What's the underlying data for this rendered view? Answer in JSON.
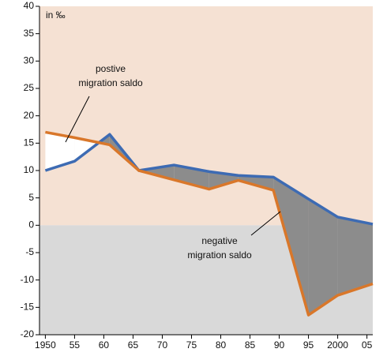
{
  "chart_data": {
    "type": "line",
    "unit_label": "in ‰",
    "x": [
      1950,
      1955,
      1961,
      1966,
      1972,
      1978,
      1983,
      1989,
      1995,
      2000,
      2006
    ],
    "series": [
      {
        "color": "#3d6bb3",
        "values": [
          10,
          11.7,
          16.6,
          10,
          11,
          9.8,
          9.1,
          8.8,
          4.8,
          1.5,
          0.2
        ]
      },
      {
        "color": "#d9772a",
        "values": [
          17,
          16,
          14.7,
          10,
          8.3,
          6.6,
          8.2,
          6.4,
          -16.4,
          -12.8,
          -10.7
        ]
      }
    ],
    "fill_between": {
      "below_first_color": "#8c8c8c",
      "above_first_color": "#ffffff"
    },
    "positive_background": "#f5e1d3",
    "negative_background": "#d9d9d9",
    "annotations": [
      {
        "lines": [
          "postive",
          "migration saldo"
        ]
      },
      {
        "lines": [
          "negative",
          "migration saldo"
        ]
      }
    ],
    "xlim": [
      1949,
      2006
    ],
    "ylim": [
      -20,
      40
    ],
    "xticks": [
      {
        "value": 1950,
        "label": "1950"
      },
      {
        "value": 1955,
        "label": "55"
      },
      {
        "value": 1960,
        "label": "60"
      },
      {
        "value": 1965,
        "label": "65"
      },
      {
        "value": 1970,
        "label": "70"
      },
      {
        "value": 1975,
        "label": "75"
      },
      {
        "value": 1980,
        "label": "80"
      },
      {
        "value": 1985,
        "label": "85"
      },
      {
        "value": 1990,
        "label": "90"
      },
      {
        "value": 1995,
        "label": "95"
      },
      {
        "value": 2000,
        "label": "2000"
      },
      {
        "value": 2005,
        "label": "05"
      }
    ],
    "yticks": [
      40,
      35,
      30,
      25,
      20,
      15,
      10,
      5,
      0,
      -5,
      -10,
      -15,
      -20
    ]
  }
}
